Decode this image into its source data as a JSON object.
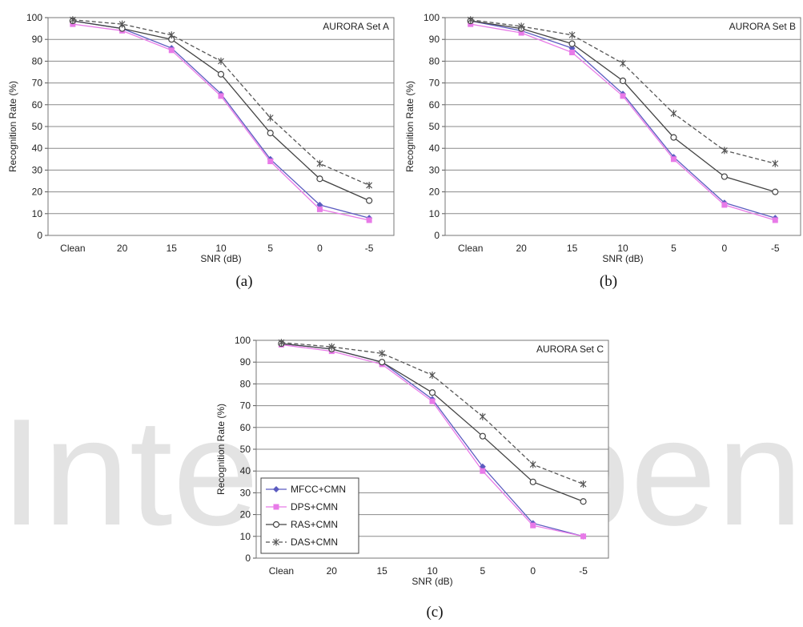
{
  "chart_data": [
    {
      "type": "line",
      "caption": "(a)",
      "title": "AURORA Set A",
      "xlabel": "SNR (dB)",
      "ylabel": "Recognition Rate (%)",
      "categories": [
        "Clean",
        "20",
        "15",
        "10",
        "5",
        "0",
        "-5"
      ],
      "ylim": [
        0,
        100
      ],
      "yticks": [
        0,
        10,
        20,
        30,
        40,
        50,
        60,
        70,
        80,
        90,
        100
      ],
      "grid": "horizontal",
      "series": [
        {
          "key": "mfcc",
          "values": [
            98.5,
            95,
            86,
            65,
            35,
            14,
            8
          ]
        },
        {
          "key": "dps",
          "values": [
            97,
            94,
            85,
            64,
            34,
            12,
            7
          ]
        },
        {
          "key": "ras",
          "values": [
            98.5,
            95,
            90,
            74,
            47,
            26,
            16
          ]
        },
        {
          "key": "das",
          "values": [
            99,
            97,
            92,
            80,
            54,
            33,
            23
          ]
        }
      ]
    },
    {
      "type": "line",
      "caption": "(b)",
      "title": "AURORA Set B",
      "xlabel": "SNR (dB)",
      "ylabel": "Recognition Rate (%)",
      "categories": [
        "Clean",
        "20",
        "15",
        "10",
        "5",
        "0",
        "-5"
      ],
      "ylim": [
        0,
        100
      ],
      "yticks": [
        0,
        10,
        20,
        30,
        40,
        50,
        60,
        70,
        80,
        90,
        100
      ],
      "grid": "horizontal",
      "series": [
        {
          "key": "mfcc",
          "values": [
            98.5,
            94,
            86,
            65,
            36,
            15,
            8
          ]
        },
        {
          "key": "dps",
          "values": [
            97,
            93,
            84,
            64,
            35,
            14,
            7
          ]
        },
        {
          "key": "ras",
          "values": [
            98.5,
            95,
            88,
            71,
            45,
            27,
            20
          ]
        },
        {
          "key": "das",
          "values": [
            99,
            96,
            92,
            79,
            56,
            39,
            33
          ]
        }
      ]
    },
    {
      "type": "line",
      "caption": "(c)",
      "title": "AURORA Set C",
      "xlabel": "SNR (dB)",
      "ylabel": "Recognition Rate (%)",
      "categories": [
        "Clean",
        "20",
        "15",
        "10",
        "5",
        "0",
        "-5"
      ],
      "ylim": [
        0,
        100
      ],
      "yticks": [
        0,
        10,
        20,
        30,
        40,
        50,
        60,
        70,
        80,
        90,
        100
      ],
      "grid": "horizontal",
      "legend": "bottom-left",
      "series": [
        {
          "key": "mfcc",
          "values": [
            98.5,
            96,
            90,
            73,
            42,
            16,
            10
          ]
        },
        {
          "key": "dps",
          "values": [
            98,
            95,
            89,
            72,
            40,
            15,
            10
          ]
        },
        {
          "key": "ras",
          "values": [
            98.5,
            96,
            90,
            76,
            56,
            35,
            26
          ]
        },
        {
          "key": "das",
          "values": [
            99,
            97,
            94,
            84,
            65,
            43,
            34
          ]
        }
      ]
    }
  ],
  "legend": [
    {
      "key": "mfcc",
      "name": "MFCC+CMN",
      "color": "#5b5bc0",
      "dash": "solid",
      "marker": "diamond"
    },
    {
      "key": "dps",
      "name": "DPS+CMN",
      "color": "#e87ae8",
      "dash": "solid",
      "marker": "square"
    },
    {
      "key": "ras",
      "name": "RAS+CMN",
      "color": "#444444",
      "dash": "solid",
      "marker": "circle"
    },
    {
      "key": "das",
      "name": "DAS+CMN",
      "color": "#555555",
      "dash": "dashed",
      "marker": "star"
    }
  ],
  "watermark": {
    "text": "IntechOpen",
    "color": "#e3e3e3"
  }
}
